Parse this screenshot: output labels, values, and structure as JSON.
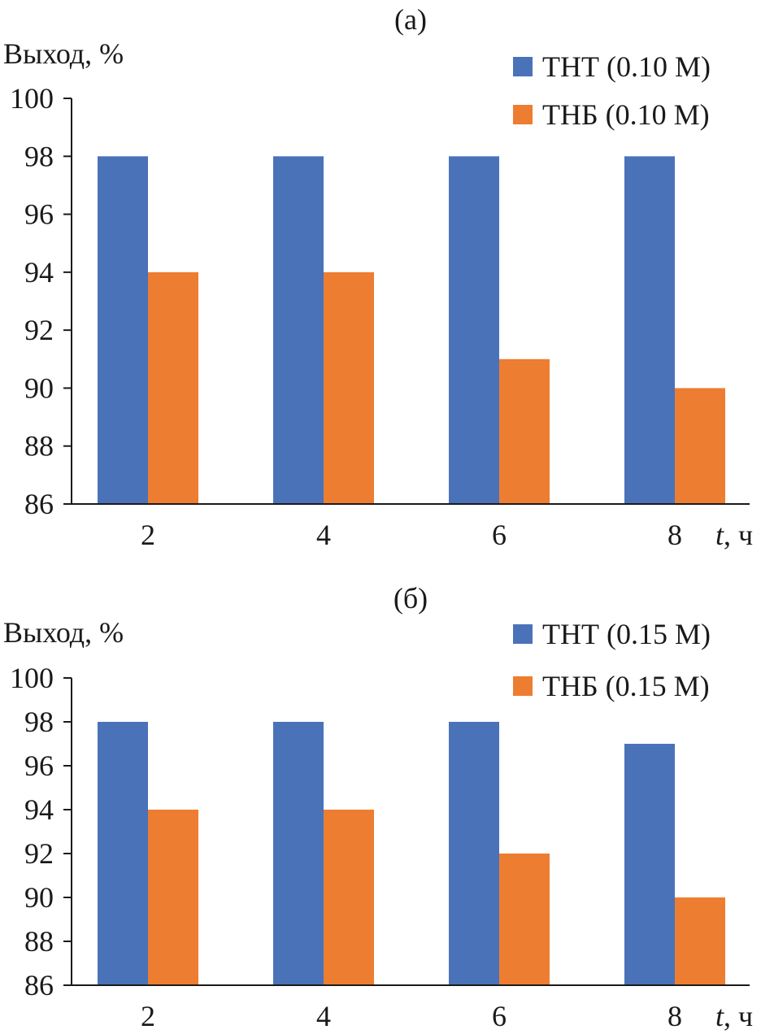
{
  "chart_data": [
    {
      "type": "bar",
      "title": "(а)",
      "ylabel": "Выход, %",
      "xlabel_var": "t",
      "xlabel_unit": ", ч",
      "categories": [
        "2",
        "4",
        "6",
        "8"
      ],
      "ylim": [
        86,
        100
      ],
      "yticks": [
        86,
        88,
        90,
        92,
        94,
        96,
        98,
        100
      ],
      "legend_position": "top-right",
      "series": [
        {
          "name": "ТНТ (0.10 М)",
          "color": "#4a72b8",
          "values": [
            98,
            98,
            98,
            98
          ]
        },
        {
          "name": "ТНБ (0.10 М)",
          "color": "#ed7d31",
          "values": [
            94,
            94,
            91,
            90
          ]
        }
      ]
    },
    {
      "type": "bar",
      "title": "(б)",
      "ylabel": "Выход, %",
      "xlabel_var": "t",
      "xlabel_unit": ", ч",
      "categories": [
        "2",
        "4",
        "6",
        "8"
      ],
      "ylim": [
        86,
        100
      ],
      "yticks": [
        86,
        88,
        90,
        92,
        94,
        96,
        98,
        100
      ],
      "legend_position": "top-right",
      "series": [
        {
          "name": "ТНТ (0.15 М)",
          "color": "#4a72b8",
          "values": [
            98,
            98,
            98,
            97
          ]
        },
        {
          "name": "ТНБ (0.15 М)",
          "color": "#ed7d31",
          "values": [
            94,
            94,
            92,
            90
          ]
        }
      ]
    }
  ]
}
